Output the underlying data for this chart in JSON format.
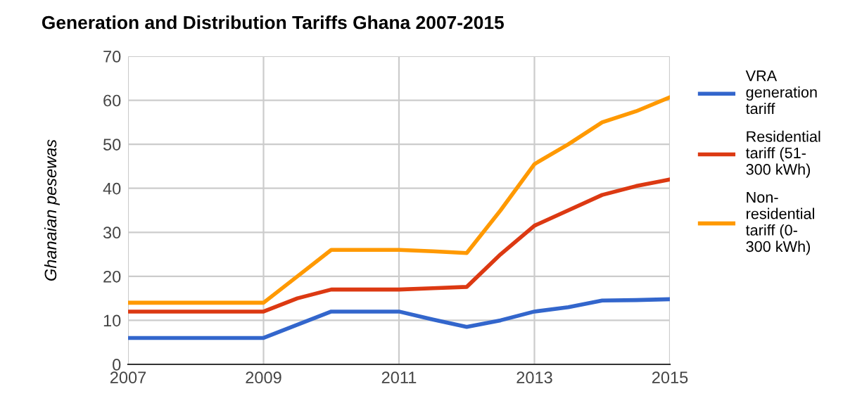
{
  "chart_data": {
    "type": "line",
    "title": "Generation and Distribution Tariffs Ghana 2007-2015",
    "ylabel": "Ghanaian pesewas",
    "x": [
      2007,
      2009,
      2009.5,
      2010,
      2011,
      2011.5,
      2012,
      2012.5,
      2013,
      2013.5,
      2014,
      2014.5,
      2015
    ],
    "series": [
      {
        "name": "VRA generation tariff",
        "color": "#3366cc",
        "values": [
          6,
          6,
          9,
          12,
          12,
          10.2,
          8.5,
          10,
          12,
          13,
          14.5,
          14.6,
          14.8
        ]
      },
      {
        "name": "Residential tariff (51-300 kWh)",
        "color": "#dc3912",
        "values": [
          12,
          12,
          15,
          17,
          17,
          17.3,
          17.6,
          25,
          31.5,
          35,
          38.5,
          40.5,
          42
        ]
      },
      {
        "name": "Non-residential tariff (0-300 kWh)",
        "color": "#ff9900",
        "values": [
          14,
          14,
          20,
          26,
          26,
          25.7,
          25.3,
          35,
          45.5,
          50,
          55,
          57.5,
          60.7
        ]
      }
    ],
    "xlim": [
      2007,
      2015
    ],
    "xticks": [
      2007,
      2009,
      2011,
      2013,
      2015
    ],
    "ylim": [
      0,
      70
    ],
    "yticks": [
      0,
      10,
      20,
      30,
      40,
      50,
      60,
      70
    ],
    "grid": true,
    "legend": "right",
    "marker": "none",
    "line_style": "solid"
  }
}
